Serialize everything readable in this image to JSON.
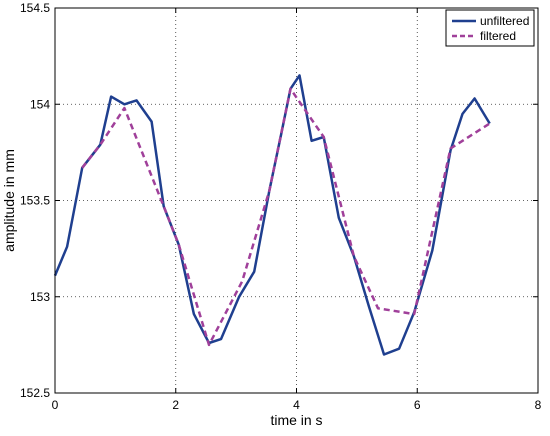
{
  "chart_data": {
    "type": "line",
    "title": "",
    "xlabel": "time in s",
    "ylabel": "amplitude in mm",
    "xlim": [
      0,
      8
    ],
    "ylim": [
      152.5,
      154.5
    ],
    "x_ticks": [
      0,
      2,
      4,
      6,
      8
    ],
    "x_tick_labels": [
      "0",
      "2",
      "4",
      "6",
      "8"
    ],
    "y_ticks": [
      152.5,
      153,
      153.5,
      154,
      154.5
    ],
    "y_tick_labels": [
      "152.5",
      "153",
      "153.5",
      "154",
      "154.5"
    ],
    "grid": true,
    "legend_position": "top-right",
    "series": [
      {
        "name": "unfiltered",
        "color": "#1f3f8f",
        "style": "solid",
        "x": [
          0,
          0.2,
          0.45,
          0.75,
          0.93,
          1.15,
          1.35,
          1.6,
          1.8,
          2.05,
          2.3,
          2.55,
          2.75,
          3.05,
          3.3,
          3.55,
          3.75,
          3.9,
          4.05,
          4.25,
          4.45,
          4.7,
          4.95,
          5.2,
          5.45,
          5.7,
          5.95,
          6.25,
          6.55,
          6.75,
          6.95,
          7.2
        ],
        "y": [
          153.11,
          153.26,
          153.67,
          153.79,
          154.04,
          154.0,
          154.02,
          153.91,
          153.47,
          153.27,
          152.91,
          152.76,
          152.78,
          153.0,
          153.13,
          153.55,
          153.85,
          154.08,
          154.15,
          153.81,
          153.83,
          153.41,
          153.21,
          152.95,
          152.7,
          152.73,
          152.92,
          153.24,
          153.76,
          153.95,
          154.03,
          153.9
        ]
      },
      {
        "name": "filtered",
        "color": "#a0409a",
        "style": "dashed",
        "x": [
          0.45,
          0.75,
          1.15,
          1.8,
          2.05,
          2.55,
          3.1,
          3.55,
          3.9,
          4.45,
          4.95,
          5.35,
          5.95,
          6.55,
          7.2
        ],
        "y": [
          153.67,
          153.79,
          153.98,
          153.47,
          153.27,
          152.75,
          153.08,
          153.55,
          154.08,
          153.83,
          153.21,
          152.94,
          152.91,
          153.77,
          153.9
        ]
      }
    ]
  }
}
